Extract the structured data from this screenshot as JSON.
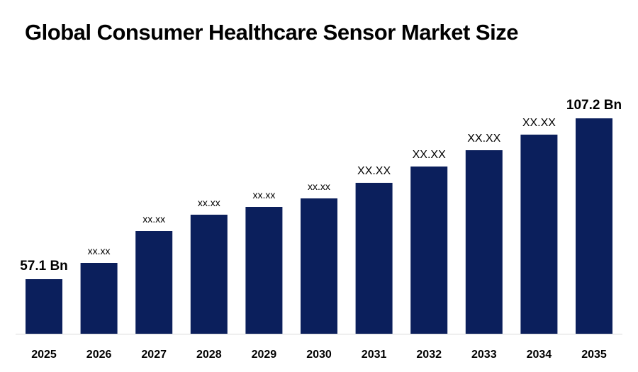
{
  "chart_data": {
    "type": "bar",
    "title": "Global Consumer Healthcare Sensor Market Size",
    "categories": [
      "2025",
      "2026",
      "2027",
      "2028",
      "2029",
      "2030",
      "2031",
      "2032",
      "2033",
      "2034",
      "2035"
    ],
    "values": [
      57.1,
      71.0,
      101.0,
      123.0,
      134.0,
      146.0,
      168.0,
      191.0,
      214.0,
      236.0,
      107.2
    ],
    "data_labels": [
      "57.1 Bn",
      "xx.xx",
      "xx.xx",
      "xx.xx",
      "xx.xx",
      "xx.xx",
      "XX.XX",
      "XX.XX",
      "XX.XX",
      "XX.XX",
      "107.2 Bn"
    ],
    "value_units": "Bn",
    "bar_color": "#0b1f5c",
    "axis_color": "#d9d9d9",
    "gridlines": false,
    "legend": "none"
  }
}
